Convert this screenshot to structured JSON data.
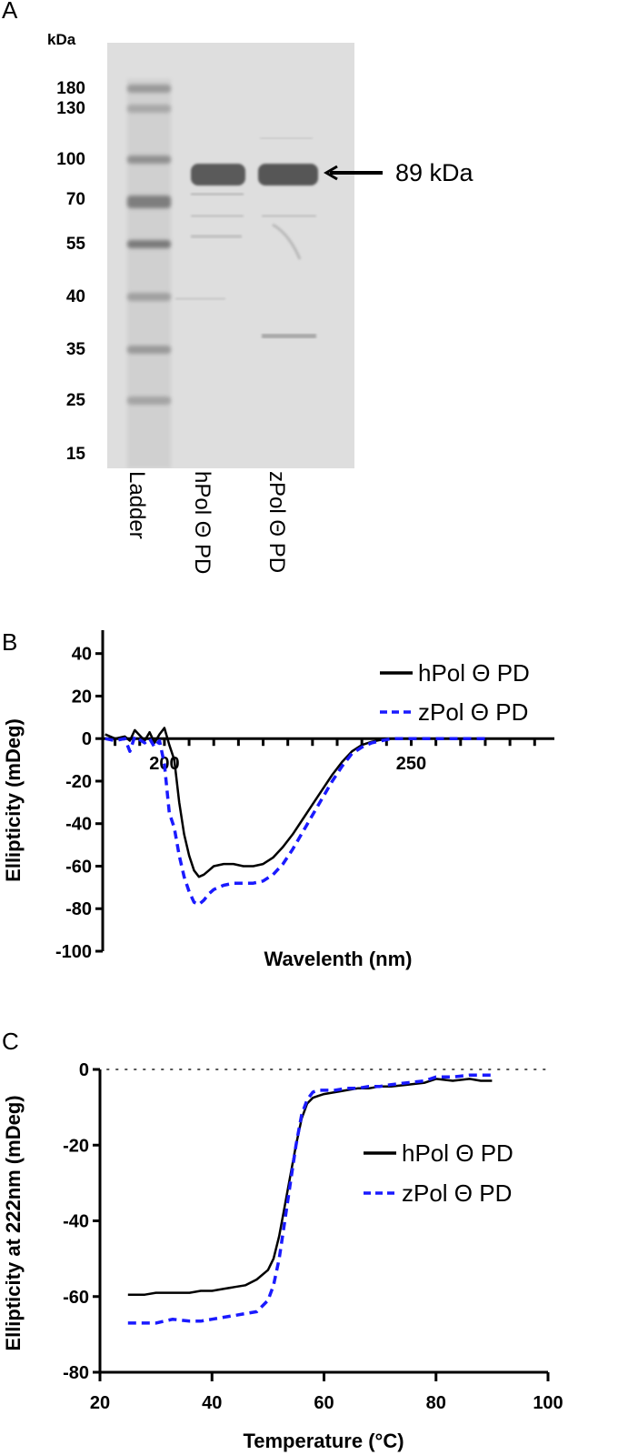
{
  "panelA": {
    "label": "A",
    "unit": "kDa",
    "markers": [
      "180",
      "130",
      "100",
      "70",
      "55",
      "40",
      "35",
      "25",
      "15"
    ],
    "lanes": [
      "Ladder",
      "hPol Θ PD",
      "zPol Θ PD"
    ],
    "annotation": "89 kDa"
  },
  "panelB": {
    "label": "B"
  },
  "panelC": {
    "label": "C"
  },
  "chart_data": [
    {
      "type": "line",
      "panel": "B",
      "title": "",
      "xlabel": "Wavelenth (nm)",
      "ylabel": "Ellipticity (mDeg)",
      "xlim": [
        187.5,
        279
      ],
      "ylim": [
        -100,
        45
      ],
      "xticks": [
        200,
        250
      ],
      "yticks": [
        40,
        20,
        0,
        -20,
        -40,
        -60,
        -80,
        -100
      ],
      "legend_position": "top-right",
      "series": [
        {
          "name": "hPol Θ PD",
          "color": "#000000",
          "dash": "solid",
          "x": [
            188,
            190,
            192,
            193,
            194,
            196,
            197,
            198,
            199,
            200,
            201,
            202,
            203,
            204,
            205,
            206,
            207,
            208,
            209,
            210,
            212,
            214,
            216,
            218,
            220,
            222,
            224,
            226,
            228,
            230,
            232,
            234,
            236,
            238,
            240,
            242,
            244,
            246,
            248,
            250,
            255,
            260,
            265
          ],
          "y": [
            2,
            0,
            1,
            -1,
            4,
            -1,
            3,
            -2,
            2,
            5,
            -3,
            -10,
            -30,
            -45,
            -55,
            -62,
            -65,
            -64,
            -62,
            -60,
            -59,
            -59,
            -60,
            -60,
            -59,
            -56,
            -51,
            -45,
            -38,
            -31,
            -24,
            -17,
            -11,
            -6,
            -3,
            -1.5,
            -0.5,
            0,
            0,
            0,
            0,
            0,
            0
          ]
        },
        {
          "name": "zPol Θ PD",
          "color": "#1a1aff",
          "dash": "dashed",
          "x": [
            188,
            190,
            192,
            193,
            194,
            196,
            197,
            198,
            199,
            200,
            201,
            202,
            203,
            204,
            205,
            206,
            207,
            208,
            209,
            210,
            212,
            214,
            216,
            218,
            220,
            222,
            224,
            226,
            228,
            230,
            232,
            234,
            236,
            238,
            240,
            242,
            244,
            246,
            248,
            250,
            255,
            260,
            265
          ],
          "y": [
            0,
            -1,
            0,
            -6,
            1,
            -2,
            0,
            -4,
            -1,
            -12,
            -35,
            -42,
            -55,
            -65,
            -72,
            -77,
            -78,
            -76,
            -73,
            -71,
            -69,
            -68,
            -68,
            -68,
            -67,
            -64,
            -59,
            -52,
            -44,
            -36,
            -28,
            -20,
            -13,
            -7,
            -4,
            -2,
            -1,
            0,
            0,
            0,
            0,
            0,
            0
          ]
        }
      ]
    },
    {
      "type": "line",
      "panel": "C",
      "title": "",
      "xlabel": "Temperature (°C)",
      "ylabel": "Ellipticity at 222nm (mDeg)",
      "xlim": [
        20,
        100
      ],
      "ylim": [
        -80,
        0
      ],
      "xticks": [
        20,
        40,
        60,
        80,
        100
      ],
      "yticks": [
        0,
        -20,
        -40,
        -60,
        -80
      ],
      "reference_line": 0,
      "legend_position": "right",
      "series": [
        {
          "name": "hPol Θ PD",
          "color": "#000000",
          "dash": "solid",
          "x": [
            25,
            28,
            30,
            33,
            36,
            38,
            40,
            42,
            44,
            46,
            48,
            50,
            51,
            52,
            53,
            54,
            55,
            56,
            57,
            58,
            59,
            60,
            62,
            64,
            66,
            68,
            70,
            72,
            75,
            78,
            80,
            83,
            86,
            88,
            90
          ],
          "y": [
            -59.5,
            -59.5,
            -59,
            -59,
            -59,
            -58.5,
            -58.5,
            -58,
            -57.5,
            -57,
            -55.5,
            -53,
            -50,
            -44,
            -36,
            -28,
            -20,
            -13,
            -9,
            -7.5,
            -7,
            -6.5,
            -6,
            -5.5,
            -5,
            -5,
            -4.5,
            -4.5,
            -4,
            -3.5,
            -2.5,
            -3,
            -2.5,
            -3,
            -3
          ]
        },
        {
          "name": "zPol Θ PD",
          "color": "#1a1aff",
          "dash": "dashed",
          "x": [
            25,
            28,
            30,
            33,
            36,
            38,
            40,
            42,
            44,
            46,
            48,
            50,
            51,
            52,
            53,
            54,
            55,
            56,
            57,
            58,
            59,
            60,
            62,
            64,
            66,
            68,
            70,
            72,
            75,
            78,
            80,
            83,
            86,
            88,
            90
          ],
          "y": [
            -67,
            -67,
            -67,
            -66,
            -66.5,
            -66.5,
            -66,
            -65.5,
            -65,
            -64.5,
            -64,
            -61,
            -57,
            -50,
            -40,
            -30,
            -20,
            -12,
            -8,
            -6,
            -5.5,
            -5.5,
            -5.5,
            -5,
            -5,
            -4.5,
            -4.5,
            -4,
            -3.5,
            -3,
            -2,
            -2,
            -1.5,
            -1.5,
            -1.5
          ]
        }
      ]
    }
  ]
}
